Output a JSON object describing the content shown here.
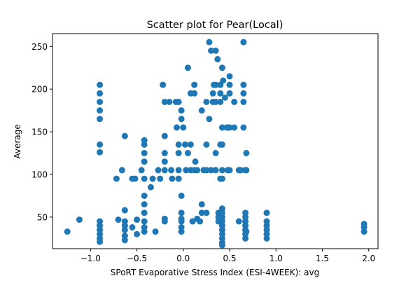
{
  "chart_data": {
    "type": "scatter",
    "title": "Scatter plot for Pear(Local)",
    "xlabel": "SPoRT Evaporative Stress Index (ESI-4WEEK): avg",
    "ylabel": "Average",
    "xlim": [
      -1.41,
      2.1
    ],
    "ylim": [
      13,
      265
    ],
    "xticks": [
      -1.0,
      -0.5,
      0.0,
      0.5,
      1.0,
      1.5,
      2.0
    ],
    "xtick_labels": [
      "−1.0",
      "−0.5",
      "0.0",
      "0.5",
      "1.0",
      "1.5",
      "2.0"
    ],
    "yticks": [
      50,
      100,
      150,
      200,
      250
    ],
    "ytick_labels": [
      "50",
      "100",
      "150",
      "200",
      "250"
    ],
    "grid": false,
    "marker_color": "#1f77b4",
    "series": [
      {
        "points": [
          [
            -1.25,
            33
          ],
          [
            -1.12,
            47
          ],
          [
            -0.9,
            205
          ],
          [
            -0.9,
            195
          ],
          [
            -0.9,
            185
          ],
          [
            -0.9,
            175
          ],
          [
            -0.9,
            165
          ],
          [
            -0.9,
            135
          ],
          [
            -0.9,
            126
          ],
          [
            -0.9,
            45
          ],
          [
            -0.9,
            40
          ],
          [
            -0.9,
            35
          ],
          [
            -0.9,
            30
          ],
          [
            -0.9,
            25
          ],
          [
            -0.9,
            21
          ],
          [
            -0.72,
            95
          ],
          [
            -0.7,
            47
          ],
          [
            -0.66,
            105
          ],
          [
            -0.63,
            145
          ],
          [
            -0.63,
            58
          ],
          [
            -0.63,
            45
          ],
          [
            -0.63,
            40
          ],
          [
            -0.63,
            35
          ],
          [
            -0.63,
            28
          ],
          [
            -0.63,
            23
          ],
          [
            -0.55,
            95
          ],
          [
            -0.52,
            95
          ],
          [
            -0.55,
            38
          ],
          [
            -0.5,
            47
          ],
          [
            -0.5,
            30
          ],
          [
            -0.45,
            105
          ],
          [
            -0.42,
            140
          ],
          [
            -0.42,
            135
          ],
          [
            -0.42,
            125
          ],
          [
            -0.42,
            115
          ],
          [
            -0.42,
            95
          ],
          [
            -0.42,
            75
          ],
          [
            -0.42,
            65
          ],
          [
            -0.42,
            55
          ],
          [
            -0.42,
            45
          ],
          [
            -0.42,
            38
          ],
          [
            -0.42,
            33
          ],
          [
            -0.35,
            85
          ],
          [
            -0.33,
            95
          ],
          [
            -0.3,
            33
          ],
          [
            -0.27,
            105
          ],
          [
            -0.25,
            95
          ],
          [
            -0.22,
            205
          ],
          [
            -0.2,
            185
          ],
          [
            -0.2,
            145
          ],
          [
            -0.2,
            125
          ],
          [
            -0.2,
            115
          ],
          [
            -0.2,
            105
          ],
          [
            -0.2,
            48
          ],
          [
            -0.2,
            45
          ],
          [
            -0.15,
            185
          ],
          [
            -0.13,
            105
          ],
          [
            -0.12,
            95
          ],
          [
            -0.08,
            185
          ],
          [
            -0.07,
            155
          ],
          [
            -0.05,
            135
          ],
          [
            -0.05,
            125
          ],
          [
            -0.05,
            105
          ],
          [
            -0.05,
            95
          ],
          [
            -0.05,
            185
          ],
          [
            -0.02,
            175
          ],
          [
            -0.02,
            165
          ],
          [
            -0.02,
            75
          ],
          [
            -0.02,
            55
          ],
          [
            -0.02,
            48
          ],
          [
            -0.02,
            45
          ],
          [
            -0.02,
            38
          ],
          [
            -0.02,
            33
          ],
          [
            0.0,
            155
          ],
          [
            0.02,
            135
          ],
          [
            0.03,
            105
          ],
          [
            0.05,
            125
          ],
          [
            0.05,
            225
          ],
          [
            0.08,
            195
          ],
          [
            0.08,
            135
          ],
          [
            0.08,
            105
          ],
          [
            0.1,
            45
          ],
          [
            0.12,
            105
          ],
          [
            0.12,
            205
          ],
          [
            0.12,
            195
          ],
          [
            0.13,
            115
          ],
          [
            0.15,
            105
          ],
          [
            0.15,
            48
          ],
          [
            0.18,
            45
          ],
          [
            0.2,
            175
          ],
          [
            0.2,
            65
          ],
          [
            0.2,
            55
          ],
          [
            0.22,
            105
          ],
          [
            0.25,
            185
          ],
          [
            0.25,
            135
          ],
          [
            0.25,
            105
          ],
          [
            0.25,
            55
          ],
          [
            0.28,
            255
          ],
          [
            0.3,
            245
          ],
          [
            0.28,
            165
          ],
          [
            0.3,
            105
          ],
          [
            0.33,
            205
          ],
          [
            0.32,
            195
          ],
          [
            0.32,
            185
          ],
          [
            0.35,
            245
          ],
          [
            0.37,
            235
          ],
          [
            0.35,
            205
          ],
          [
            0.35,
            185
          ],
          [
            0.35,
            125
          ],
          [
            0.35,
            105
          ],
          [
            0.38,
            55
          ],
          [
            0.38,
            50
          ],
          [
            0.38,
            45
          ],
          [
            0.4,
            205
          ],
          [
            0.4,
            195
          ],
          [
            0.4,
            185
          ],
          [
            0.4,
            135
          ],
          [
            0.4,
            95
          ],
          [
            0.42,
            225
          ],
          [
            0.43,
            210
          ],
          [
            0.42,
            155
          ],
          [
            0.42,
            135
          ],
          [
            0.42,
            105
          ],
          [
            0.42,
            95
          ],
          [
            0.42,
            60
          ],
          [
            0.42,
            55
          ],
          [
            0.42,
            50
          ],
          [
            0.42,
            45
          ],
          [
            0.42,
            40
          ],
          [
            0.42,
            35
          ],
          [
            0.42,
            30
          ],
          [
            0.42,
            25
          ],
          [
            0.42,
            20
          ],
          [
            0.42,
            17
          ],
          [
            0.45,
            190
          ],
          [
            0.47,
            155
          ],
          [
            0.48,
            155
          ],
          [
            0.48,
            105
          ],
          [
            0.5,
            215
          ],
          [
            0.5,
            205
          ],
          [
            0.5,
            195
          ],
          [
            0.5,
            155
          ],
          [
            0.5,
            105
          ],
          [
            0.55,
            185
          ],
          [
            0.55,
            155
          ],
          [
            0.6,
            105
          ],
          [
            0.62,
            105
          ],
          [
            0.6,
            45
          ],
          [
            0.65,
            255
          ],
          [
            0.65,
            205
          ],
          [
            0.65,
            195
          ],
          [
            0.65,
            185
          ],
          [
            0.65,
            155
          ],
          [
            0.67,
            105
          ],
          [
            0.67,
            55
          ],
          [
            0.67,
            50
          ],
          [
            0.67,
            45
          ],
          [
            0.67,
            40
          ],
          [
            0.67,
            35
          ],
          [
            0.67,
            30
          ],
          [
            0.67,
            25
          ],
          [
            0.68,
            125
          ],
          [
            0.68,
            105
          ],
          [
            0.68,
            33
          ],
          [
            0.9,
            55
          ],
          [
            0.9,
            45
          ],
          [
            0.9,
            40
          ],
          [
            0.9,
            35
          ],
          [
            0.9,
            30
          ],
          [
            0.9,
            25
          ],
          [
            1.95,
            42
          ],
          [
            1.95,
            38
          ],
          [
            1.95,
            33
          ]
        ]
      }
    ]
  }
}
